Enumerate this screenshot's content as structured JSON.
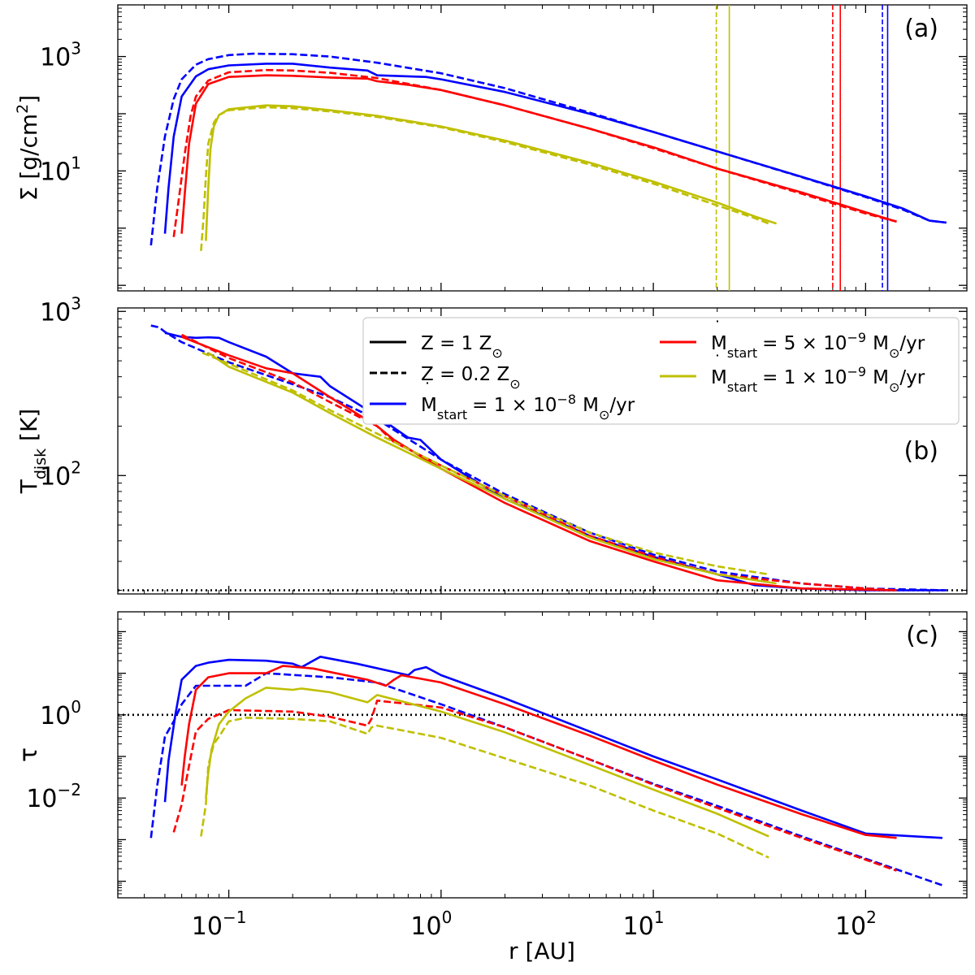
{
  "figure": {
    "xlabel": "r [AU]",
    "xscale": "log",
    "xlim": [
      0.03,
      300
    ],
    "xticks": [
      {
        "v": 0.1,
        "base": "10",
        "exp": "−1"
      },
      {
        "v": 1,
        "base": "10",
        "exp": "0"
      },
      {
        "v": 10,
        "base": "10",
        "exp": "1"
      },
      {
        "v": 100,
        "base": "10",
        "exp": "2"
      }
    ]
  },
  "colors": {
    "blue": "#0000ff",
    "red": "#ff0000",
    "olive": "#bfbf00",
    "black": "#000000"
  },
  "legend": {
    "z1_base": "Z = 1 Z",
    "z1_sub": "⊙",
    "z02_base": "Z = 0.2 Z",
    "z02_sub": "⊙",
    "mdot_prefix": "M",
    "mdot_sub": "start",
    "blue_val": "= 1 × 10",
    "blue_exp": "−8",
    "blue_unit": "M",
    "blue_unit_tail": "/yr",
    "red_val": "= 5 × 10",
    "red_exp": "−9",
    "red_unit": "M",
    "red_unit_tail": "/yr",
    "olive_val": "= 1 × 10",
    "olive_exp": "−9",
    "olive_unit": "M",
    "olive_unit_tail": "/yr",
    "sun_sub": "⊙"
  },
  "chart_data": [
    {
      "type": "line",
      "panel_label": "(a)",
      "ylabel_main": "Σ [g/cm",
      "ylabel_sup": "2",
      "ylabel_tail": "]",
      "yscale": "log",
      "ylim": [
        0.08,
        8000
      ],
      "yticks": [
        {
          "v": 10,
          "base": "10",
          "exp": "1"
        },
        {
          "v": 1000,
          "base": "10",
          "exp": "3"
        }
      ],
      "vlines": [
        {
          "x": 19.8,
          "color": "olive",
          "style": "dashed"
        },
        {
          "x": 22.8,
          "color": "olive",
          "style": "solid"
        },
        {
          "x": 70,
          "color": "red",
          "style": "dashed"
        },
        {
          "x": 76,
          "color": "red",
          "style": "solid"
        },
        {
          "x": 120,
          "color": "blue",
          "style": "dashed"
        },
        {
          "x": 127,
          "color": "blue",
          "style": "solid"
        }
      ],
      "series": [
        {
          "name": "Z=0.2, Mdot=1e-8",
          "color": "blue",
          "style": "dashed",
          "x": [
            0.043,
            0.046,
            0.05,
            0.055,
            0.06,
            0.07,
            0.08,
            0.1,
            0.13,
            0.2,
            0.3,
            0.5,
            1,
            2,
            5,
            10,
            20,
            50,
            100,
            150,
            200,
            240
          ],
          "y": [
            0.5,
            5,
            40,
            180,
            400,
            720,
            900,
            1060,
            1120,
            1100,
            1000,
            780,
            510,
            280,
            105,
            48,
            22,
            7.8,
            3.5,
            2.1,
            1.35,
            1.25
          ]
        },
        {
          "name": "Z=1, Mdot=1e-8",
          "color": "blue",
          "style": "solid",
          "x": [
            0.05,
            0.052,
            0.055,
            0.06,
            0.07,
            0.08,
            0.1,
            0.15,
            0.2,
            0.22,
            0.3,
            0.45,
            0.5,
            0.85,
            1,
            2,
            5,
            10,
            20,
            50,
            100,
            150,
            200,
            240
          ],
          "y": [
            0.8,
            5,
            40,
            200,
            450,
            600,
            700,
            750,
            750,
            720,
            640,
            570,
            470,
            440,
            400,
            240,
            100,
            48,
            22,
            7.9,
            3.6,
            2.2,
            1.35,
            1.25
          ]
        },
        {
          "name": "Z=0.2, Mdot=5e-9",
          "color": "red",
          "style": "dashed",
          "x": [
            0.055,
            0.058,
            0.062,
            0.066,
            0.07,
            0.08,
            0.1,
            0.15,
            0.2,
            0.3,
            0.5,
            1,
            2,
            5,
            10,
            20,
            50,
            100,
            140
          ],
          "y": [
            0.7,
            3,
            20,
            90,
            200,
            380,
            530,
            580,
            570,
            520,
            420,
            260,
            140,
            55,
            25,
            11,
            4,
            1.8,
            1.3
          ]
        },
        {
          "name": "Z=1, Mdot=5e-9",
          "color": "red",
          "style": "solid",
          "x": [
            0.06,
            0.062,
            0.065,
            0.07,
            0.08,
            0.1,
            0.15,
            0.2,
            0.3,
            0.45,
            0.5,
            0.7,
            1,
            2,
            5,
            10,
            20,
            50,
            100,
            140
          ],
          "y": [
            0.8,
            4,
            30,
            150,
            330,
            440,
            470,
            460,
            430,
            410,
            370,
            320,
            260,
            140,
            55,
            26,
            11,
            4.2,
            1.9,
            1.3
          ]
        },
        {
          "name": "Z=0.2, Mdot=1e-9",
          "color": "olive",
          "style": "dashed",
          "x": [
            0.074,
            0.076,
            0.078,
            0.08,
            0.085,
            0.09,
            0.1,
            0.15,
            0.2,
            0.3,
            0.5,
            1,
            2,
            5,
            10,
            20,
            30,
            35
          ],
          "y": [
            0.4,
            1.5,
            8,
            30,
            70,
            95,
            115,
            130,
            125,
            110,
            88,
            58,
            32,
            13,
            6,
            2.5,
            1.5,
            1.2
          ]
        },
        {
          "name": "Z=1, Mdot=1e-9",
          "color": "olive",
          "style": "solid",
          "x": [
            0.078,
            0.08,
            0.082,
            0.085,
            0.09,
            0.1,
            0.15,
            0.2,
            0.3,
            0.5,
            1,
            2,
            5,
            10,
            20,
            30,
            38
          ],
          "y": [
            0.6,
            5,
            25,
            60,
            95,
            120,
            140,
            135,
            115,
            92,
            60,
            34,
            14,
            6.5,
            2.8,
            1.6,
            1.2
          ]
        }
      ]
    },
    {
      "type": "line",
      "panel_label": "(b)",
      "ylabel_main": "T",
      "ylabel_sub": "disk",
      "ylabel_tail": " [K]",
      "yscale": "log",
      "ylim": [
        19,
        1050
      ],
      "yticks": [
        {
          "v": 100,
          "base": "10",
          "exp": "2"
        },
        {
          "v": 1000,
          "base": "10",
          "exp": "3"
        }
      ],
      "hline": {
        "y": 20,
        "color": "black",
        "style": "dotted"
      },
      "series": [
        {
          "name": "Z=0.2, Mdot=1e-8",
          "color": "blue",
          "style": "dashed",
          "x": [
            0.043,
            0.047,
            0.05,
            0.06,
            0.1,
            0.2,
            0.3,
            0.5,
            1,
            2,
            5,
            10,
            20,
            50,
            100,
            240
          ],
          "y": [
            820,
            800,
            750,
            650,
            490,
            360,
            300,
            220,
            125,
            77,
            45,
            33,
            26,
            22,
            20.5,
            20
          ]
        },
        {
          "name": "Z=1, Mdot=1e-8",
          "color": "blue",
          "style": "solid",
          "x": [
            0.05,
            0.06,
            0.07,
            0.08,
            0.09,
            0.1,
            0.15,
            0.2,
            0.27,
            0.3,
            0.5,
            0.7,
            0.8,
            1,
            1.5,
            2,
            5,
            10,
            20,
            30,
            50,
            100,
            240
          ],
          "y": [
            740,
            700,
            690,
            695,
            690,
            650,
            530,
            420,
            400,
            350,
            230,
            170,
            165,
            125,
            90,
            72,
            43,
            32,
            25,
            21.5,
            20.5,
            20,
            20
          ]
        },
        {
          "name": "Z=0.2, Mdot=5e-9",
          "color": "red",
          "style": "dashed",
          "x": [
            0.06,
            0.1,
            0.2,
            0.3,
            0.5,
            0.6,
            1,
            2,
            5,
            10,
            20,
            50,
            100,
            140
          ],
          "y": [
            720,
            520,
            370,
            280,
            200,
            160,
            115,
            75,
            43,
            32,
            25,
            22,
            20.5,
            20
          ]
        },
        {
          "name": "Z=1, Mdot=5e-9",
          "color": "red",
          "style": "solid",
          "x": [
            0.06,
            0.1,
            0.15,
            0.2,
            0.3,
            0.5,
            0.6,
            1,
            2,
            5,
            10,
            20,
            50,
            140
          ],
          "y": [
            700,
            540,
            450,
            420,
            300,
            200,
            165,
            110,
            68,
            40,
            30,
            23,
            20.5,
            20
          ]
        },
        {
          "name": "Z=0.2, Mdot=1e-9",
          "color": "olive",
          "style": "dashed",
          "x": [
            0.075,
            0.1,
            0.2,
            0.3,
            0.5,
            1,
            2,
            5,
            10,
            20,
            35
          ],
          "y": [
            560,
            480,
            330,
            250,
            180,
            115,
            75,
            45,
            34,
            28,
            25
          ]
        },
        {
          "name": "Z=1, Mdot=1e-9",
          "color": "olive",
          "style": "solid",
          "x": [
            0.08,
            0.1,
            0.2,
            0.3,
            0.5,
            1,
            2,
            5,
            10,
            20,
            38
          ],
          "y": [
            560,
            460,
            320,
            240,
            170,
            110,
            72,
            42,
            31,
            25,
            22
          ]
        }
      ]
    },
    {
      "type": "line",
      "panel_label": "(c)",
      "ylabel_main": "τ",
      "yscale": "log",
      "ylim": [
        4e-05,
        300
      ],
      "yticks": [
        {
          "v": 0.01,
          "base": "10",
          "exp": "−2"
        },
        {
          "v": 1,
          "base": "10",
          "exp": "0"
        }
      ],
      "hline": {
        "y": 1,
        "color": "black",
        "style": "dotted"
      },
      "series": [
        {
          "name": "Z=0.2, Mdot=1e-8",
          "color": "blue",
          "style": "dashed",
          "x": [
            0.043,
            0.046,
            0.05,
            0.055,
            0.06,
            0.07,
            0.1,
            0.12,
            0.15,
            0.3,
            0.5,
            1,
            2,
            5,
            10,
            20,
            50,
            100,
            230
          ],
          "y": [
            0.0011,
            0.02,
            0.3,
            0.7,
            1.8,
            5,
            5,
            5,
            10,
            8,
            6,
            1.8,
            0.5,
            0.085,
            0.022,
            0.0065,
            0.0012,
            0.00035,
            8e-05
          ]
        },
        {
          "name": "Z=1, Mdot=1e-8",
          "color": "blue",
          "style": "solid",
          "x": [
            0.05,
            0.052,
            0.056,
            0.06,
            0.07,
            0.08,
            0.1,
            0.15,
            0.2,
            0.22,
            0.27,
            0.4,
            0.7,
            0.75,
            0.85,
            1,
            2,
            5,
            10,
            20,
            50,
            100,
            230
          ],
          "y": [
            0.008,
            0.08,
            1,
            7,
            15,
            18,
            21,
            20,
            17,
            14,
            25,
            17,
            9,
            12,
            14,
            9,
            2.5,
            0.4,
            0.1,
            0.028,
            0.005,
            0.0014,
            0.0011
          ]
        },
        {
          "name": "Z=0.2, Mdot=5e-9",
          "color": "red",
          "style": "dashed",
          "x": [
            0.055,
            0.06,
            0.065,
            0.07,
            0.08,
            0.1,
            0.2,
            0.3,
            0.45,
            0.47,
            0.5,
            1,
            2,
            5,
            10,
            20,
            50,
            100,
            140
          ],
          "y": [
            0.0015,
            0.007,
            0.06,
            0.4,
            0.8,
            1.3,
            1.2,
            0.9,
            0.55,
            0.8,
            2.2,
            1.5,
            0.5,
            0.085,
            0.021,
            0.0058,
            0.0011,
            0.00033,
            0.00018
          ]
        },
        {
          "name": "Z=1, Mdot=5e-9",
          "color": "red",
          "style": "solid",
          "x": [
            0.06,
            0.062,
            0.065,
            0.07,
            0.08,
            0.1,
            0.15,
            0.18,
            0.25,
            0.45,
            0.55,
            0.6,
            0.65,
            1,
            2,
            5,
            10,
            20,
            50,
            100,
            140
          ],
          "y": [
            0.02,
            0.1,
            0.6,
            4,
            8,
            10,
            10,
            15,
            13,
            7,
            5,
            7,
            9,
            6,
            1.8,
            0.32,
            0.08,
            0.021,
            0.0041,
            0.0013,
            0.0011
          ]
        },
        {
          "name": "Z=0.2, Mdot=1e-9",
          "color": "olive",
          "style": "dashed",
          "x": [
            0.074,
            0.078,
            0.08,
            0.085,
            0.09,
            0.1,
            0.12,
            0.2,
            0.3,
            0.45,
            0.47,
            0.5,
            1,
            2,
            5,
            10,
            20,
            35
          ],
          "y": [
            0.0012,
            0.007,
            0.06,
            0.2,
            0.3,
            0.7,
            0.85,
            0.8,
            0.7,
            0.35,
            0.5,
            0.55,
            0.28,
            0.09,
            0.02,
            0.005,
            0.0014,
            0.00037
          ]
        },
        {
          "name": "Z=1, Mdot=1e-9",
          "color": "olive",
          "style": "solid",
          "x": [
            0.078,
            0.08,
            0.083,
            0.09,
            0.1,
            0.12,
            0.15,
            0.2,
            0.22,
            0.3,
            0.45,
            0.5,
            1,
            2,
            5,
            10,
            20,
            35
          ],
          "y": [
            0.01,
            0.04,
            0.15,
            0.6,
            1.2,
            2.5,
            4.5,
            4,
            4.3,
            3.5,
            2,
            3,
            1.2,
            0.38,
            0.063,
            0.016,
            0.0042,
            0.0012
          ]
        }
      ]
    }
  ]
}
